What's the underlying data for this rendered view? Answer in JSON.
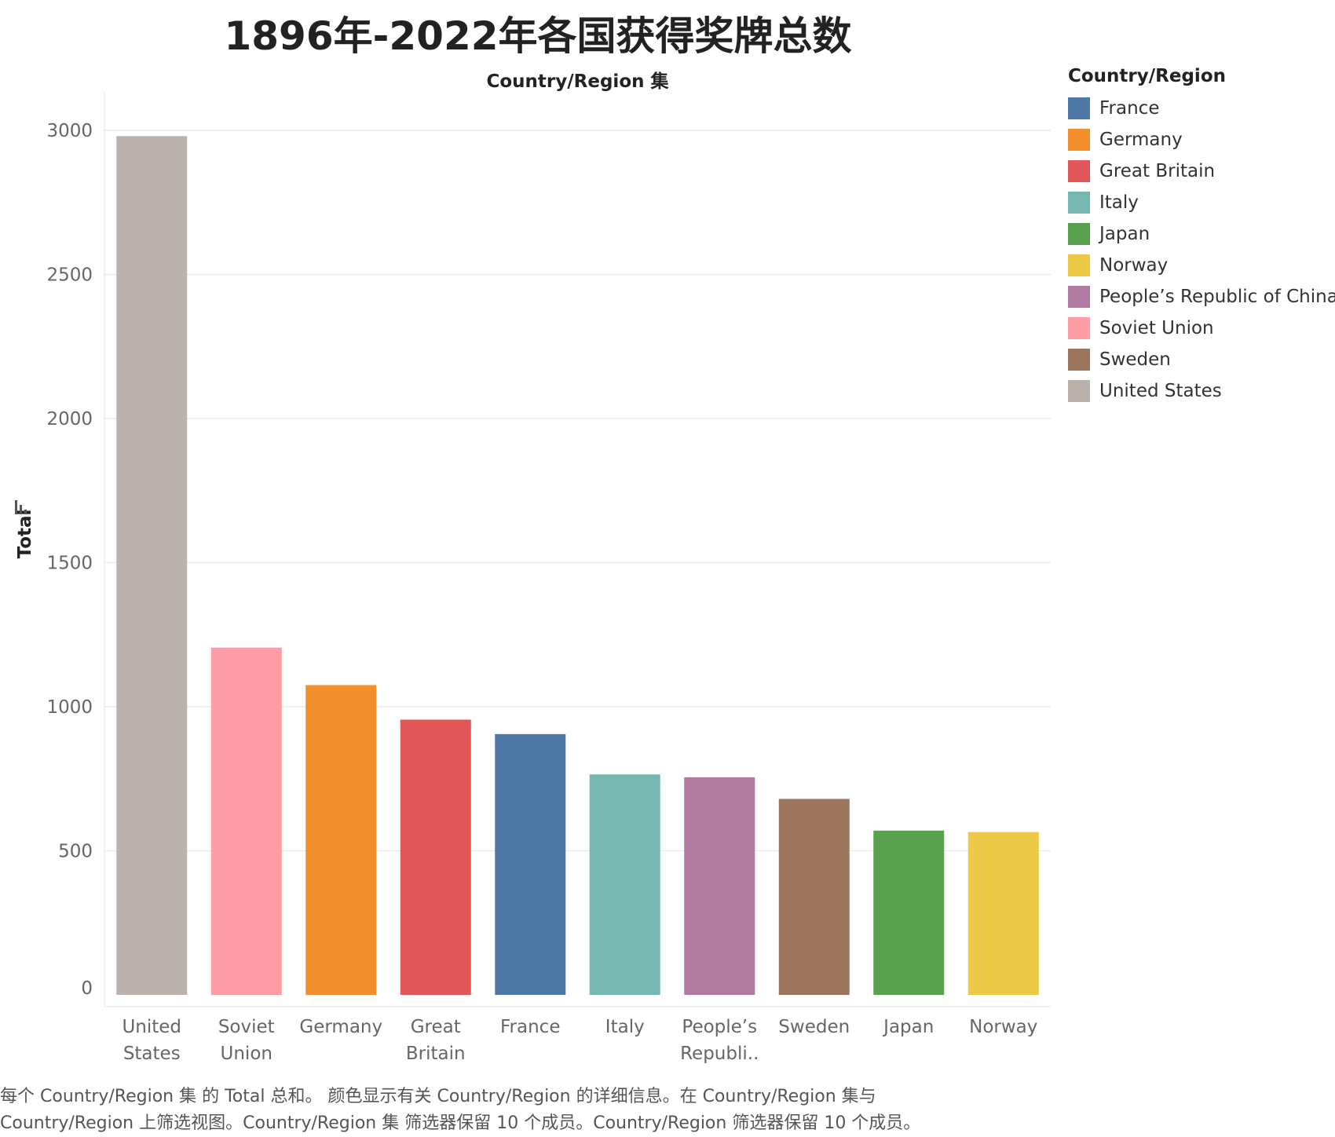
{
  "title": "1896年-2022年各国获得奖牌总数",
  "header_label": "Country/Region 集",
  "legend": {
    "title": "Country/Region",
    "items": [
      {
        "label": "France",
        "color": "#4e79a7"
      },
      {
        "label": "Germany",
        "color": "#f28e2b"
      },
      {
        "label": "Great Britain",
        "color": "#e15759"
      },
      {
        "label": "Italy",
        "color": "#76b7b2"
      },
      {
        "label": "Japan",
        "color": "#59a14f"
      },
      {
        "label": "Norway",
        "color": "#edc948"
      },
      {
        "label": "People’s Republic of China",
        "color": "#b07aa1"
      },
      {
        "label": "Soviet Union",
        "color": "#ff9da7"
      },
      {
        "label": "Sweden",
        "color": "#9c755f"
      },
      {
        "label": "United States",
        "color": "#bab0ac"
      }
    ]
  },
  "caption": "每个 Country/Region 集 的 Total 总和。 颜色显示有关 Country/Region 的详细信息。在 Country/Region 集与Country/Region 上筛选视图。Country/Region 集 筛选器保留 10 个成员。Country/Region 筛选器保留 10 个成员。",
  "chart_data": {
    "type": "bar",
    "title": "1896年-2022年各国获得奖牌总数",
    "xlabel": "Country/Region 集",
    "ylabel": "Total",
    "ylim": [
      0,
      3000
    ],
    "yticks": [
      "0",
      "500",
      "1000",
      "1500",
      "2000",
      "2500",
      "3000"
    ],
    "grid": true,
    "legend_position": "right",
    "categories": [
      [
        "United",
        "States"
      ],
      [
        "Soviet",
        "Union"
      ],
      [
        "Germany"
      ],
      [
        "Great",
        "Britain"
      ],
      [
        "France"
      ],
      [
        "Italy"
      ],
      [
        "People’s",
        "Republi.."
      ],
      [
        "Sweden"
      ],
      [
        "Japan"
      ],
      [
        "Norway"
      ]
    ],
    "values": [
      2980,
      1205,
      1075,
      955,
      905,
      765,
      755,
      680,
      570,
      565
    ],
    "colors": [
      "#bab0ac",
      "#ff9da7",
      "#f28e2b",
      "#e15759",
      "#4e79a7",
      "#76b7b2",
      "#b07aa1",
      "#9c755f",
      "#59a14f",
      "#edc948"
    ]
  }
}
